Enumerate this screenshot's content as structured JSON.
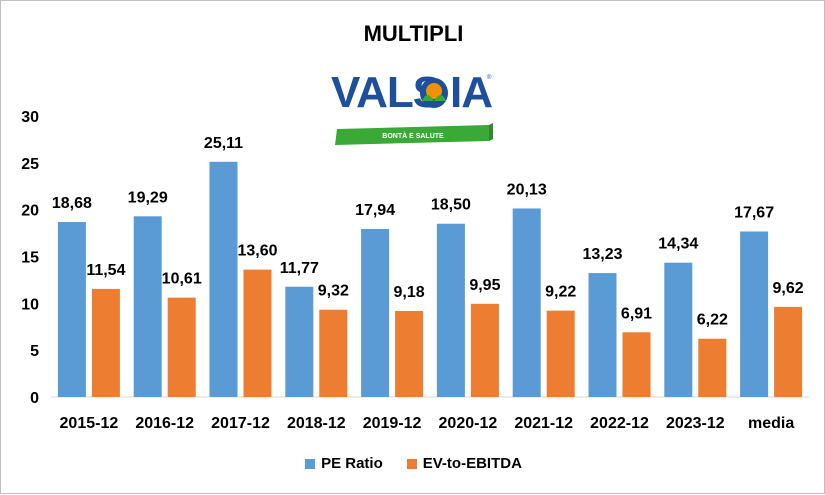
{
  "colors": {
    "pe": "#5b9bd5",
    "ev": "#ed7d31",
    "logo_blue": "#1d4f9c",
    "logo_green": "#3aa935",
    "logo_orange": "#f39200"
  },
  "logo": {
    "brand": "VALSOIA",
    "tagline": "BONTÀ E SALUTE"
  },
  "chart_data": {
    "type": "bar",
    "title": "MULTIPLI",
    "categories": [
      "2015-12",
      "2016-12",
      "2017-12",
      "2018-12",
      "2019-12",
      "2020-12",
      "2021-12",
      "2022-12",
      "2023-12",
      "media"
    ],
    "series": [
      {
        "name": "PE Ratio",
        "values": [
          18.68,
          19.29,
          25.11,
          11.77,
          17.94,
          18.5,
          20.13,
          13.23,
          14.34,
          17.67
        ],
        "labels": [
          "18,68",
          "19,29",
          "25,11",
          "11,77",
          "17,94",
          "18,50",
          "20,13",
          "13,23",
          "14,34",
          "17,67"
        ]
      },
      {
        "name": "EV-to-EBITDA",
        "values": [
          11.54,
          10.61,
          13.6,
          9.32,
          9.18,
          9.95,
          9.22,
          6.91,
          6.22,
          9.62
        ],
        "labels": [
          "11,54",
          "10,61",
          "13,60",
          "9,32",
          "9,18",
          "9,95",
          "9,22",
          "6,91",
          "6,22",
          "9,62"
        ]
      }
    ],
    "yticks": [
      "0",
      "5",
      "10",
      "15",
      "20",
      "25",
      "30"
    ],
    "ylim": [
      0,
      30
    ],
    "grid": false,
    "legend": "bottom"
  }
}
